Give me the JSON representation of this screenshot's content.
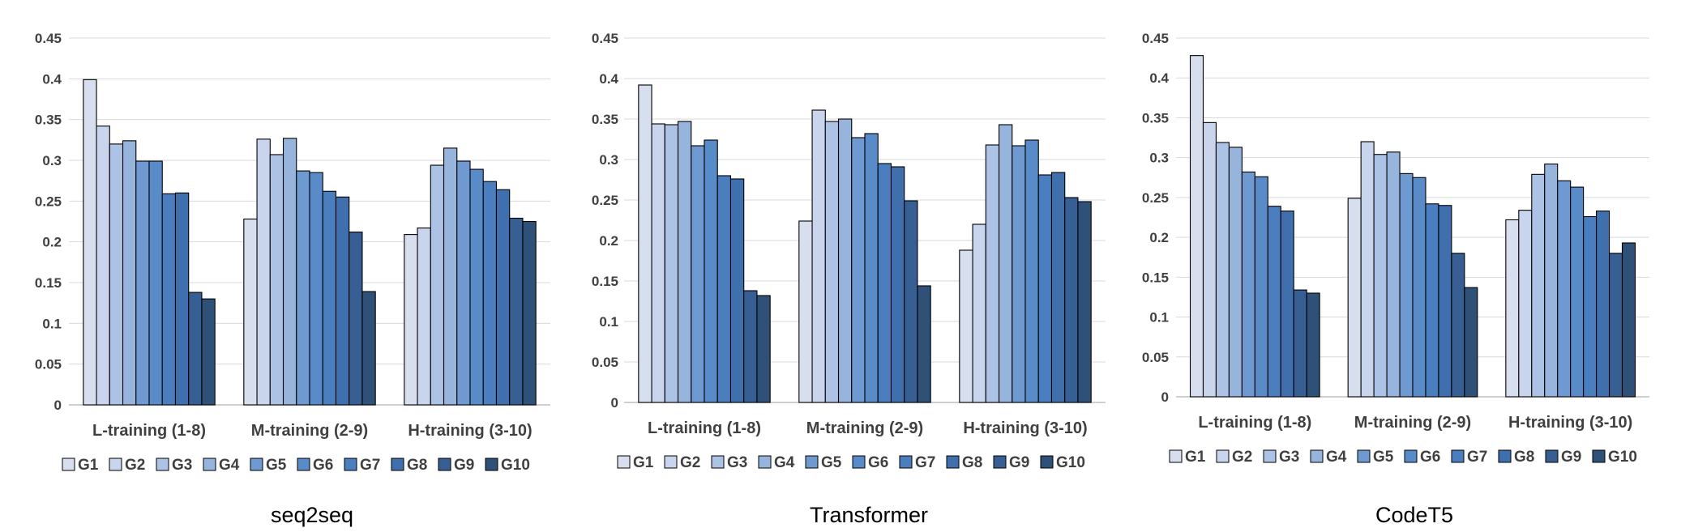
{
  "chart_data": [
    {
      "type": "bar",
      "caption": "seq2seq",
      "categories": [
        "L-training (1-8)",
        "M-training (2-9)",
        "H-training (3-10)"
      ],
      "ylim": [
        0,
        0.45
      ],
      "yticks": [
        "0",
        "0.05",
        "0.1",
        "0.15",
        "0.2",
        "0.25",
        "0.3",
        "0.35",
        "0.4",
        "0.45"
      ],
      "grid": true,
      "legend_position": "bottom",
      "series": [
        {
          "name": "G1",
          "values": [
            0.399,
            0.228,
            0.209
          ]
        },
        {
          "name": "G2",
          "values": [
            0.342,
            0.326,
            0.217
          ]
        },
        {
          "name": "G3",
          "values": [
            0.32,
            0.307,
            0.294
          ]
        },
        {
          "name": "G4",
          "values": [
            0.324,
            0.327,
            0.315
          ]
        },
        {
          "name": "G5",
          "values": [
            0.299,
            0.287,
            0.299
          ]
        },
        {
          "name": "G6",
          "values": [
            0.299,
            0.285,
            0.289
          ]
        },
        {
          "name": "G7",
          "values": [
            0.259,
            0.262,
            0.274
          ]
        },
        {
          "name": "G8",
          "values": [
            0.26,
            0.255,
            0.264
          ]
        },
        {
          "name": "G9",
          "values": [
            0.138,
            0.212,
            0.229
          ]
        },
        {
          "name": "G10",
          "values": [
            0.13,
            0.139,
            0.225
          ]
        }
      ]
    },
    {
      "type": "bar",
      "caption": "Transformer",
      "categories": [
        "L-training (1-8)",
        "M-training (2-9)",
        "H-training (3-10)"
      ],
      "ylim": [
        0,
        0.45
      ],
      "yticks": [
        "0",
        "0.05",
        "0.1",
        "0.15",
        "0.2",
        "0.25",
        "0.3",
        "0.35",
        "0.4",
        "0.45"
      ],
      "grid": true,
      "legend_position": "bottom",
      "series": [
        {
          "name": "G1",
          "values": [
            0.392,
            0.224,
            0.188
          ]
        },
        {
          "name": "G2",
          "values": [
            0.344,
            0.361,
            0.22
          ]
        },
        {
          "name": "G3",
          "values": [
            0.343,
            0.347,
            0.318
          ]
        },
        {
          "name": "G4",
          "values": [
            0.347,
            0.35,
            0.343
          ]
        },
        {
          "name": "G5",
          "values": [
            0.317,
            0.327,
            0.317
          ]
        },
        {
          "name": "G6",
          "values": [
            0.324,
            0.332,
            0.324
          ]
        },
        {
          "name": "G7",
          "values": [
            0.28,
            0.295,
            0.281
          ]
        },
        {
          "name": "G8",
          "values": [
            0.276,
            0.291,
            0.284
          ]
        },
        {
          "name": "G9",
          "values": [
            0.138,
            0.249,
            0.253
          ]
        },
        {
          "name": "G10",
          "values": [
            0.132,
            0.144,
            0.248
          ]
        }
      ]
    },
    {
      "type": "bar",
      "caption": "CodeT5",
      "categories": [
        "L-training (1-8)",
        "M-training (2-9)",
        "H-training (3-10)"
      ],
      "ylim": [
        0,
        0.45
      ],
      "yticks": [
        "0",
        "0.05",
        "0.1",
        "0.15",
        "0.2",
        "0.25",
        "0.3",
        "0.35",
        "0.4",
        "0.45"
      ],
      "grid": true,
      "legend_position": "bottom",
      "series": [
        {
          "name": "G1",
          "values": [
            0.428,
            0.249,
            0.222
          ]
        },
        {
          "name": "G2",
          "values": [
            0.344,
            0.32,
            0.234
          ]
        },
        {
          "name": "G3",
          "values": [
            0.319,
            0.304,
            0.279
          ]
        },
        {
          "name": "G4",
          "values": [
            0.313,
            0.307,
            0.292
          ]
        },
        {
          "name": "G5",
          "values": [
            0.282,
            0.28,
            0.271
          ]
        },
        {
          "name": "G6",
          "values": [
            0.276,
            0.275,
            0.263
          ]
        },
        {
          "name": "G7",
          "values": [
            0.239,
            0.242,
            0.226
          ]
        },
        {
          "name": "G8",
          "values": [
            0.233,
            0.24,
            0.233
          ]
        },
        {
          "name": "G9",
          "values": [
            0.134,
            0.18,
            0.18
          ]
        },
        {
          "name": "G10",
          "values": [
            0.13,
            0.137,
            0.193
          ]
        }
      ]
    }
  ],
  "colors": {
    "series": [
      "#d7dfef",
      "#c8d5ec",
      "#adc3e5",
      "#97b4dc",
      "#6f9ad1",
      "#5a8bc9",
      "#4b7ebf",
      "#3f70ad",
      "#375f93",
      "#2f5177"
    ],
    "grid": "#d9d9d9",
    "axis": "#bfbfbf",
    "bar_outline": "#000000"
  }
}
